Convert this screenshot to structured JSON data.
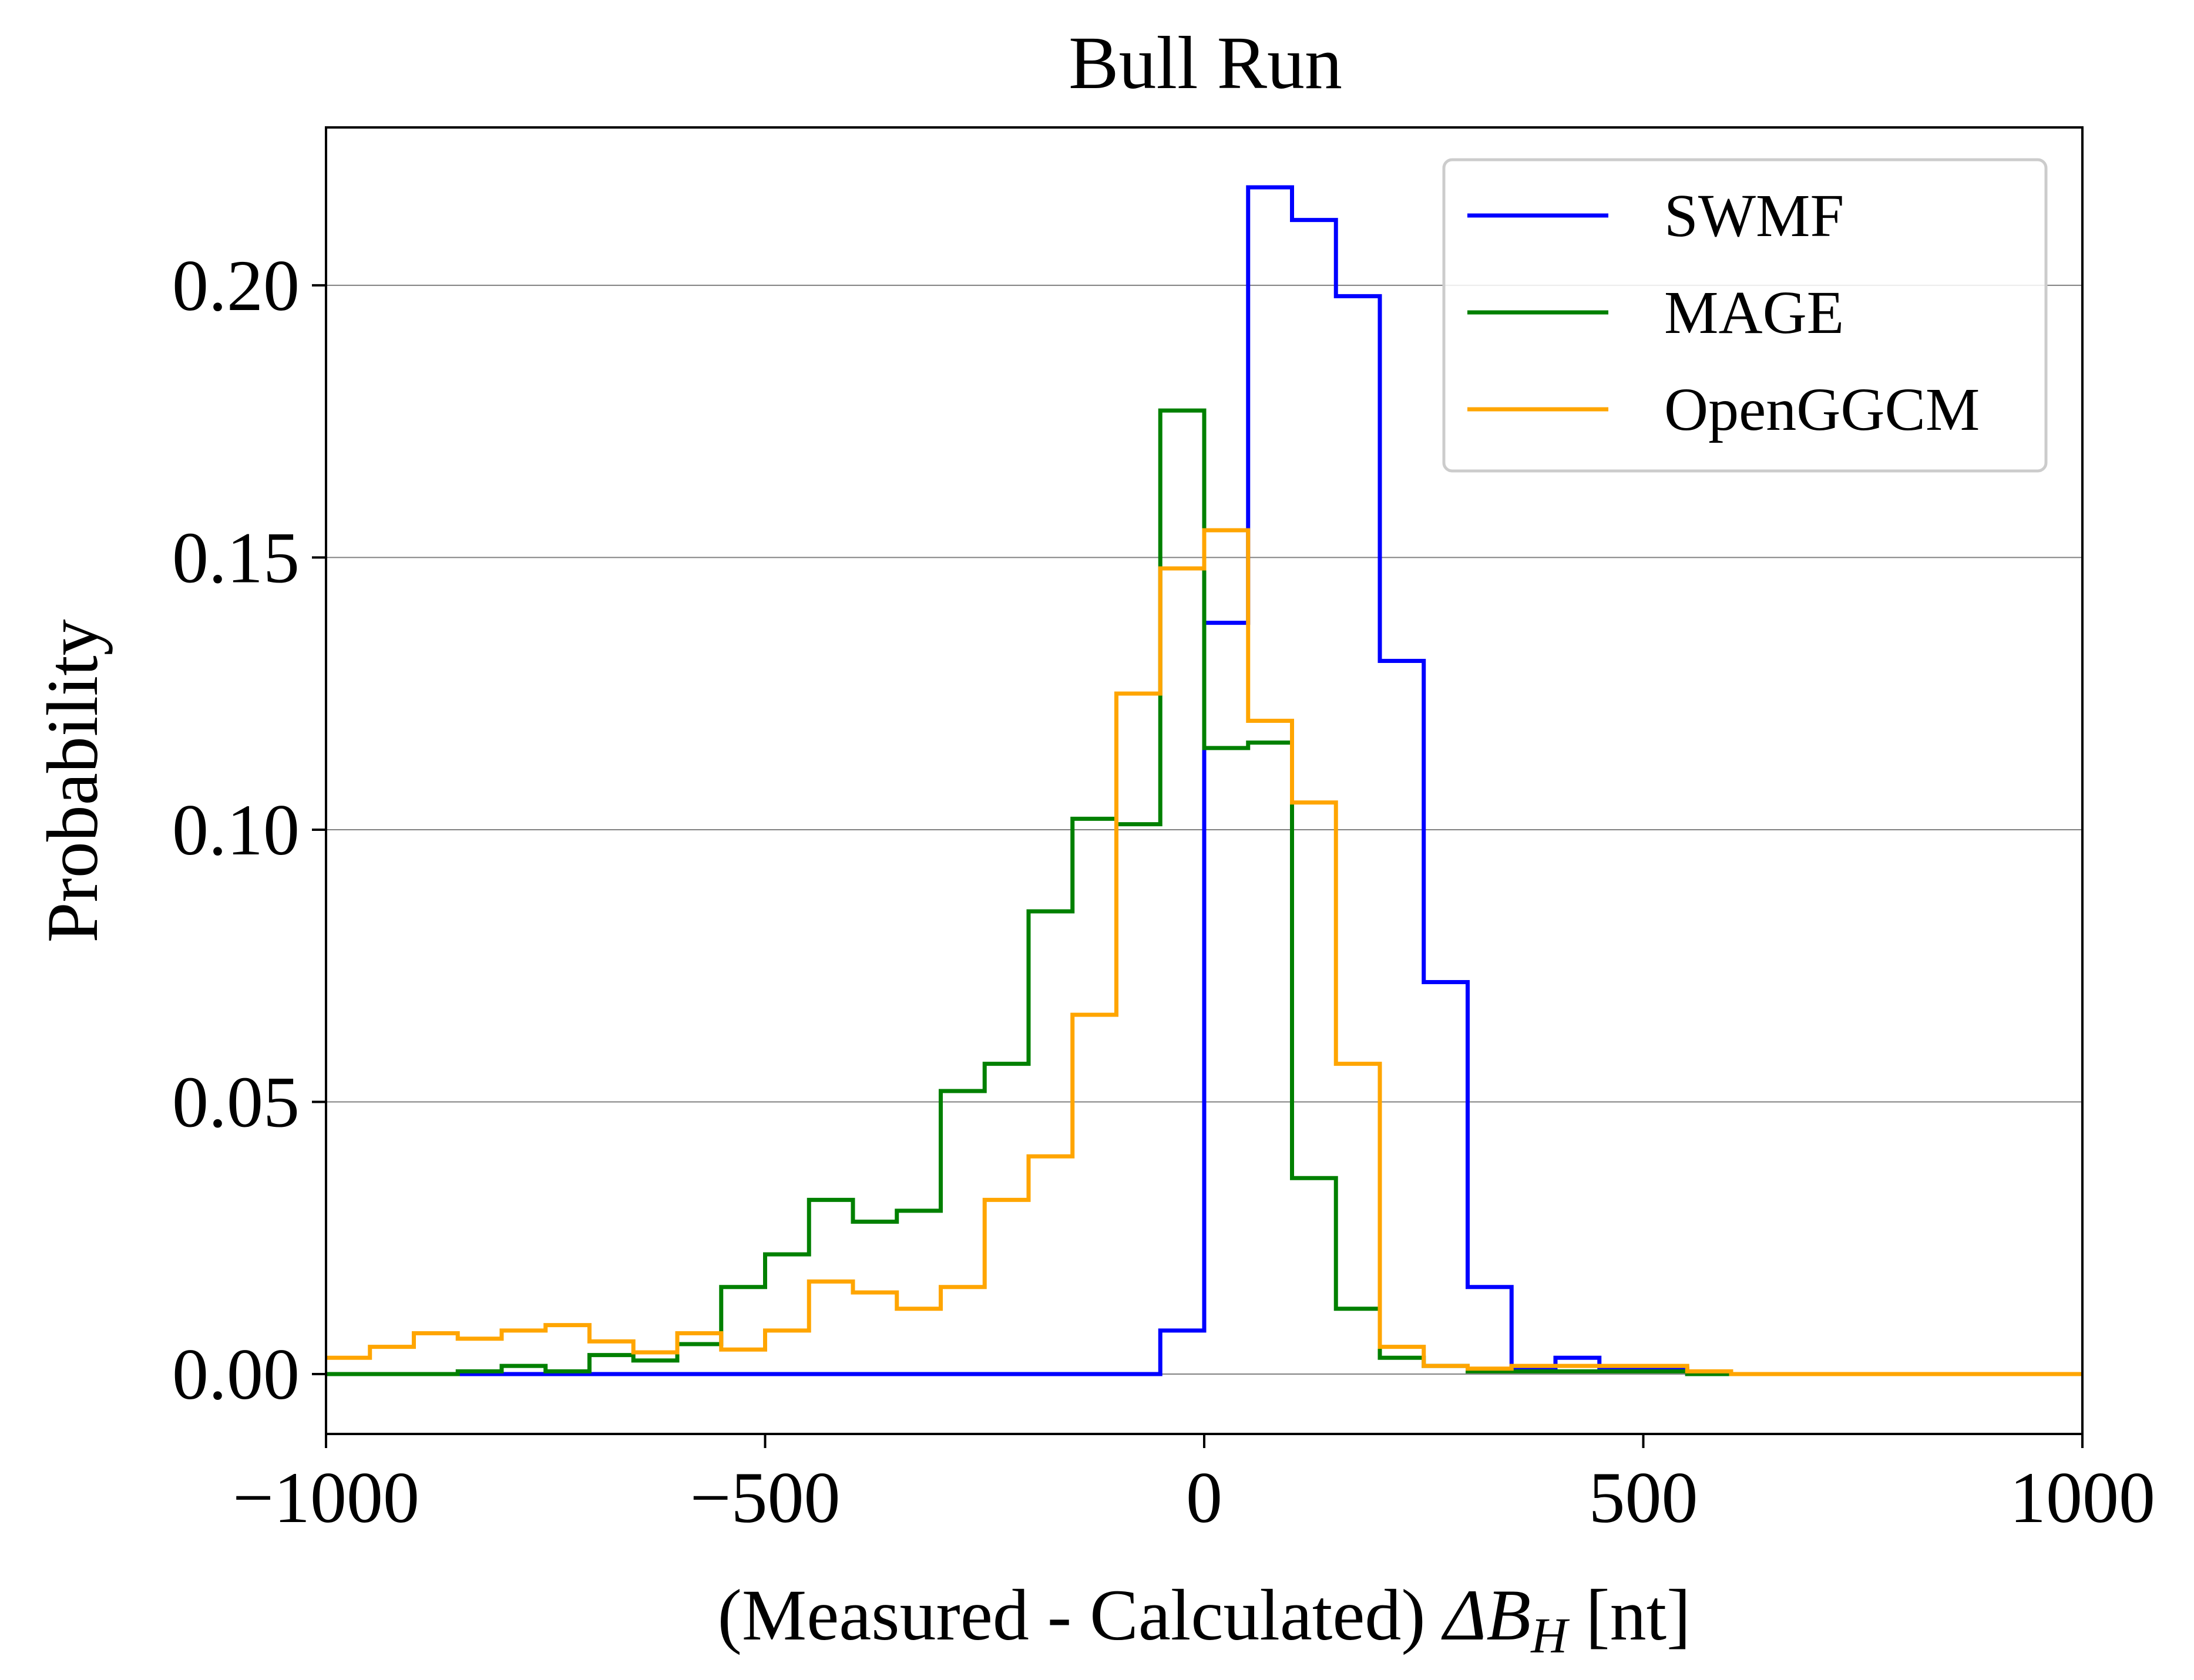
{
  "chart_data": {
    "type": "line",
    "subtype": "step-histogram",
    "title": "Bull Run",
    "xlabel_prefix": "(Measured - Calculated) ",
    "xlabel_delta": "ΔB",
    "xlabel_sub": "H",
    "xlabel_suffix": " [nt]",
    "ylabel": "Probability",
    "xlim": [
      -1000,
      1000
    ],
    "ylim": [
      -0.011,
      0.229
    ],
    "xticks": [
      -1000,
      -500,
      0,
      500,
      1000
    ],
    "xtick_labels": [
      "−1000",
      "−500",
      "0",
      "500",
      "1000"
    ],
    "yticks": [
      0.0,
      0.05,
      0.1,
      0.15,
      0.2
    ],
    "ytick_labels": [
      "0.00",
      "0.05",
      "0.10",
      "0.15",
      "0.20"
    ],
    "grid": "horizontal",
    "legend_position": "top-right",
    "bin_edges": [
      -1000,
      -950,
      -900,
      -850,
      -800,
      -750,
      -700,
      -650,
      -600,
      -550,
      -500,
      -450,
      -400,
      -350,
      -300,
      -250,
      -200,
      -150,
      -100,
      -50,
      0,
      50,
      100,
      150,
      200,
      250,
      300,
      350,
      400,
      450,
      500,
      550,
      600,
      650,
      700,
      750,
      800,
      850,
      900,
      950,
      1000
    ],
    "series": [
      {
        "name": "SWMF",
        "color": "#0000ff",
        "values": [
          0,
          0,
          0,
          0,
          0,
          0,
          0,
          0,
          0,
          0,
          0,
          0,
          0,
          0,
          0,
          0,
          0,
          0,
          0,
          0.008,
          0.138,
          0.218,
          0.212,
          0.198,
          0.131,
          0.072,
          0.016,
          0.001,
          0.003,
          0.001,
          0.001,
          0,
          0,
          0,
          0,
          0,
          0,
          0,
          0,
          0
        ]
      },
      {
        "name": "MAGE",
        "color": "#008000",
        "values": [
          0,
          0,
          0,
          0.0005,
          0.0015,
          0.0005,
          0.0035,
          0.0025,
          0.0055,
          0.016,
          0.022,
          0.032,
          0.028,
          0.03,
          0.052,
          0.057,
          0.085,
          0.102,
          0.101,
          0.177,
          0.115,
          0.116,
          0.036,
          0.012,
          0.003,
          0.0015,
          0.0005,
          0.0005,
          0.0005,
          0.0005,
          0.0005,
          0,
          0,
          0,
          0,
          0,
          0,
          0,
          0,
          0
        ]
      },
      {
        "name": "OpenGGCM",
        "color": "#ffa500",
        "values": [
          0.003,
          0.005,
          0.0075,
          0.0065,
          0.008,
          0.009,
          0.006,
          0.004,
          0.0075,
          0.0045,
          0.008,
          0.017,
          0.015,
          0.012,
          0.016,
          0.032,
          0.04,
          0.066,
          0.125,
          0.148,
          0.155,
          0.12,
          0.105,
          0.057,
          0.005,
          0.0015,
          0.001,
          0.0015,
          0.0015,
          0.0015,
          0.0015,
          0.0005,
          0,
          0,
          0,
          0,
          0,
          0,
          0,
          0
        ]
      }
    ]
  }
}
